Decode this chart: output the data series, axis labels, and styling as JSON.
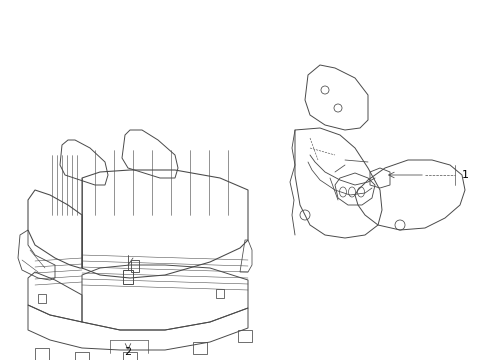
{
  "background_color": "#ffffff",
  "line_color": "#4a4a4a",
  "label_color": "#000000",
  "fig_width": 4.89,
  "fig_height": 3.6,
  "dpi": 100,
  "label1": "1",
  "label2": "2",
  "line_width": 0.7
}
